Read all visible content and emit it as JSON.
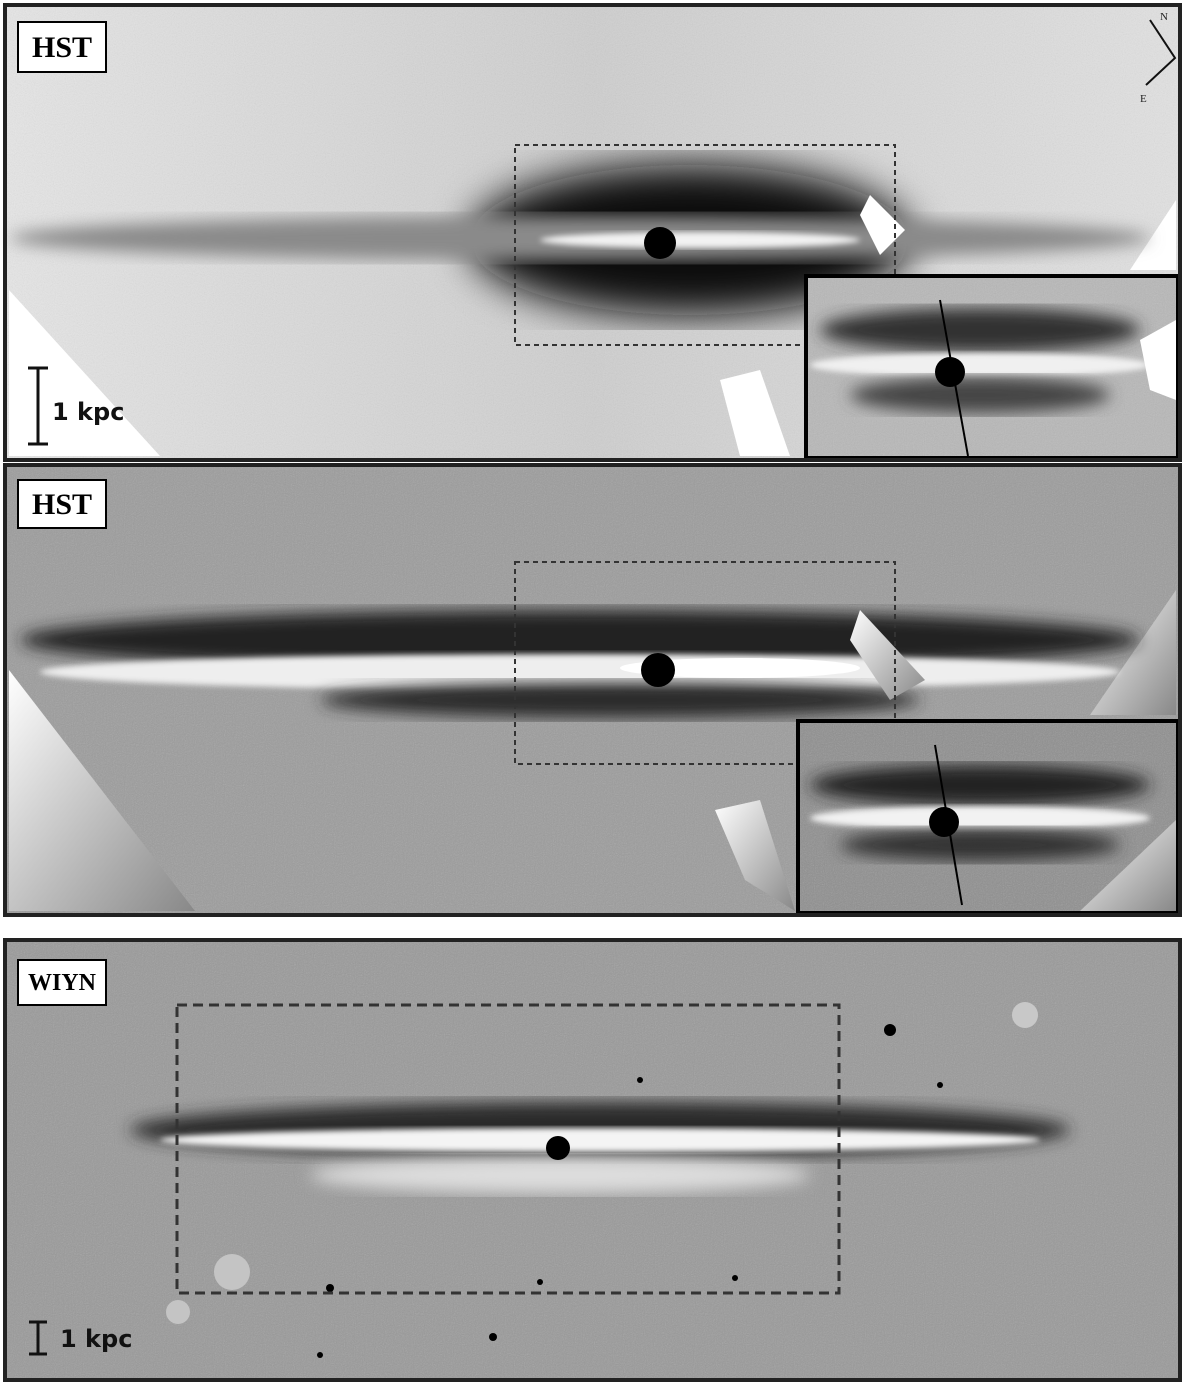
{
  "panels": [
    {
      "label": "HST",
      "scale_bar": "1 kpc",
      "compass": {
        "north": "N",
        "east": "E"
      }
    },
    {
      "label": "HST"
    },
    {
      "label": "WIYN",
      "scale_bar": "1 kpc"
    }
  ]
}
